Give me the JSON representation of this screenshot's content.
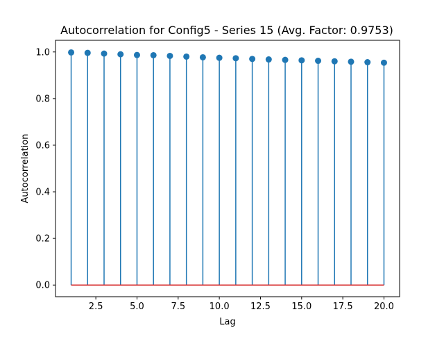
{
  "chart_data": {
    "type": "stem",
    "title": "Autocorrelation for Config5 - Series 15 (Avg. Factor: 0.9753)",
    "xlabel": "Lag",
    "ylabel": "Autocorrelation",
    "x": [
      1,
      2,
      3,
      4,
      5,
      6,
      7,
      8,
      9,
      10,
      11,
      12,
      13,
      14,
      15,
      16,
      17,
      18,
      19,
      20
    ],
    "series": [
      {
        "values": [
          0.998,
          0.996,
          0.993,
          0.99,
          0.987,
          0.986,
          0.983,
          0.98,
          0.977,
          0.975,
          0.973,
          0.97,
          0.968,
          0.966,
          0.964,
          0.962,
          0.96,
          0.958,
          0.956,
          0.954
        ]
      }
    ],
    "xlim": [
      0.05,
      20.95
    ],
    "ylim": [
      -0.05,
      1.05
    ],
    "xticks": [
      2.5,
      5.0,
      7.5,
      10.0,
      12.5,
      15.0,
      17.5,
      20.0
    ],
    "xtick_labels": [
      "2.5",
      "5.0",
      "7.5",
      "10.0",
      "12.5",
      "15.0",
      "17.5",
      "20.0"
    ],
    "yticks": [
      0.0,
      0.2,
      0.4,
      0.6,
      0.8,
      1.0
    ],
    "ytick_labels": [
      "0.0",
      "0.2",
      "0.4",
      "0.6",
      "0.8",
      "1.0"
    ],
    "baseline": 0,
    "grid": false,
    "colors": {
      "stem": "#1f77b4",
      "marker": "#1f77b4",
      "baseline": "#d62728"
    }
  }
}
